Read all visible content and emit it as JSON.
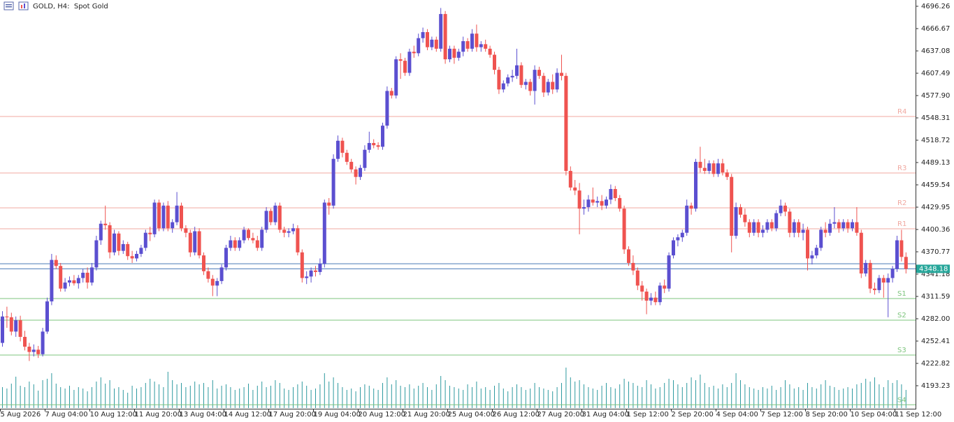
{
  "chart_data": {
    "type": "candlestick",
    "title": "GOLD, H4:  Spot Gold",
    "bull_color": "#5b4fd0",
    "bear_color": "#ef5350",
    "volume_color": "#2e9aa0",
    "ylim": [
      4163.62,
      4704.58
    ],
    "yticks": [
      4696.26,
      4666.67,
      4637.08,
      4607.49,
      {
        "value": 4577.9,
        "label": "4577.90"
      },
      4548.31,
      4518.72,
      4489.13,
      4459.54,
      4429.95,
      4400.36,
      4370.77,
      4341.18,
      4311.59,
      {
        "value": 4282,
        "label": "4282.00"
      },
      4252.41,
      4222.82,
      4193.23
    ],
    "xticks": [
      {
        "value": 0,
        "label": "5 Aug 2026"
      },
      {
        "value": 10,
        "label": "7 Aug 04:00"
      },
      {
        "value": 20,
        "label": "10 Aug 12:00"
      },
      {
        "value": 30,
        "label": "11 Aug 20:00"
      },
      {
        "value": 40,
        "label": "13 Aug 04:00"
      },
      {
        "value": 50,
        "label": "14 Aug 12:00"
      },
      {
        "value": 60,
        "label": "17 Aug 20:00"
      },
      {
        "value": 70,
        "label": "19 Aug 04:00"
      },
      {
        "value": 80,
        "label": "20 Aug 12:00"
      },
      {
        "value": 90,
        "label": "21 Aug 20:00"
      },
      {
        "value": 100,
        "label": "25 Aug 04:00"
      },
      {
        "value": 110,
        "label": "26 Aug 12:00"
      },
      {
        "value": 120,
        "label": "27 Aug 20:00"
      },
      {
        "value": 130,
        "label": "31 Aug 04:00"
      },
      {
        "value": 140,
        "label": "1 Sep 12:00"
      },
      {
        "value": 150,
        "label": "2 Sep 20:00"
      },
      {
        "value": 160,
        "label": "4 Sep 04:00"
      },
      {
        "value": 170,
        "label": "7 Sep 12:00"
      },
      {
        "value": 180,
        "label": "8 Sep 20:00"
      },
      {
        "value": 190,
        "label": "10 Sep 04:00"
      },
      {
        "value": 200,
        "label": "11 Sep 12:00"
      }
    ],
    "bid": {
      "value": 4348.18,
      "label": "4348.18",
      "color": "#26a69a"
    },
    "ask": {
      "value": 4354.9,
      "color": "#4a7ab8"
    },
    "levels": [
      {
        "label": "R4",
        "value": 4550.2,
        "color": "#f0a8a0"
      },
      {
        "label": "R3",
        "value": 4475.3,
        "color": "#f0a8a0"
      },
      {
        "label": "R2",
        "value": 4429.0,
        "color": "#f0a8a0"
      },
      {
        "label": "R1",
        "value": 4401.3,
        "color": "#f0a8a0"
      },
      {
        "label": "S1",
        "value": 4308.8,
        "color": "#7cc47c"
      },
      {
        "label": "S2",
        "value": 4280.1,
        "color": "#7cc47c"
      },
      {
        "label": "S3",
        "value": 4233.9,
        "color": "#7cc47c"
      },
      {
        "label": "S4",
        "value": 4168.0,
        "color": "#7cc47c"
      }
    ],
    "ohlc": [
      [
        4250,
        4292,
        4245,
        4285
      ],
      [
        4285,
        4298,
        4270,
        4284
      ],
      [
        4284,
        4290,
        4260,
        4265
      ],
      [
        4265,
        4285,
        4258,
        4280
      ],
      [
        4280,
        4286,
        4252,
        4258
      ],
      [
        4258,
        4266,
        4240,
        4245
      ],
      [
        4245,
        4250,
        4226,
        4238
      ],
      [
        4238,
        4248,
        4232,
        4241
      ],
      [
        4241,
        4246,
        4230,
        4235
      ],
      [
        4235,
        4270,
        4232,
        4265
      ],
      [
        4265,
        4310,
        4262,
        4305
      ],
      [
        4305,
        4368,
        4300,
        4360
      ],
      [
        4360,
        4366,
        4348,
        4352
      ],
      [
        4352,
        4356,
        4318,
        4322
      ],
      [
        4322,
        4336,
        4318,
        4330
      ],
      [
        4330,
        4338,
        4325,
        4333
      ],
      [
        4333,
        4340,
        4326,
        4329
      ],
      [
        4329,
        4340,
        4322,
        4336
      ],
      [
        4336,
        4348,
        4330,
        4343
      ],
      [
        4343,
        4350,
        4322,
        4330
      ],
      [
        4330,
        4356,
        4326,
        4350
      ],
      [
        4350,
        4392,
        4346,
        4386
      ],
      [
        4386,
        4412,
        4380,
        4408
      ],
      [
        4408,
        4432,
        4400,
        4406
      ],
      [
        4406,
        4410,
        4362,
        4370
      ],
      [
        4370,
        4400,
        4366,
        4395
      ],
      [
        4395,
        4398,
        4366,
        4372
      ],
      [
        4372,
        4386,
        4368,
        4381
      ],
      [
        4381,
        4384,
        4360,
        4365
      ],
      [
        4365,
        4372,
        4356,
        4362
      ],
      [
        4362,
        4372,
        4358,
        4368
      ],
      [
        4368,
        4380,
        4364,
        4376
      ],
      [
        4376,
        4400,
        4372,
        4396
      ],
      [
        4396,
        4404,
        4385,
        4394
      ],
      [
        4394,
        4440,
        4390,
        4436
      ],
      [
        4436,
        4440,
        4398,
        4402
      ],
      [
        4402,
        4436,
        4398,
        4432
      ],
      [
        4432,
        4438,
        4398,
        4402
      ],
      [
        4402,
        4414,
        4396,
        4410
      ],
      [
        4410,
        4450,
        4406,
        4432
      ],
      [
        4432,
        4436,
        4398,
        4402
      ],
      [
        4402,
        4406,
        4390,
        4396
      ],
      [
        4396,
        4400,
        4364,
        4370
      ],
      [
        4370,
        4404,
        4366,
        4398
      ],
      [
        4398,
        4402,
        4362,
        4366
      ],
      [
        4366,
        4370,
        4340,
        4345
      ],
      [
        4345,
        4350,
        4330,
        4335
      ],
      [
        4335,
        4340,
        4312,
        4326
      ],
      [
        4326,
        4336,
        4312,
        4332
      ],
      [
        4332,
        4354,
        4328,
        4350
      ],
      [
        4350,
        4380,
        4346,
        4376
      ],
      [
        4376,
        4392,
        4372,
        4386
      ],
      [
        4386,
        4390,
        4372,
        4376
      ],
      [
        4376,
        4390,
        4372,
        4386
      ],
      [
        4386,
        4404,
        4382,
        4400
      ],
      [
        4400,
        4402,
        4386,
        4389
      ],
      [
        4389,
        4396,
        4382,
        4386
      ],
      [
        4386,
        4392,
        4372,
        4376
      ],
      [
        4376,
        4404,
        4372,
        4400
      ],
      [
        4400,
        4430,
        4396,
        4425
      ],
      [
        4425,
        4428,
        4406,
        4410
      ],
      [
        4410,
        4436,
        4406,
        4432
      ],
      [
        4432,
        4436,
        4396,
        4400
      ],
      [
        4400,
        4404,
        4390,
        4396
      ],
      [
        4396,
        4402,
        4390,
        4398
      ],
      [
        4398,
        4408,
        4394,
        4402
      ],
      [
        4402,
        4406,
        4366,
        4370
      ],
      [
        4370,
        4374,
        4330,
        4336
      ],
      [
        4336,
        4345,
        4328,
        4338
      ],
      [
        4338,
        4350,
        4330,
        4346
      ],
      [
        4346,
        4352,
        4338,
        4344
      ],
      [
        4344,
        4362,
        4340,
        4355
      ],
      [
        4355,
        4440,
        4350,
        4436
      ],
      [
        4436,
        4442,
        4420,
        4432
      ],
      [
        4432,
        4500,
        4428,
        4494
      ],
      [
        4494,
        4525,
        4490,
        4518
      ],
      [
        4518,
        4522,
        4496,
        4502
      ],
      [
        4502,
        4506,
        4486,
        4490
      ],
      [
        4490,
        4494,
        4476,
        4480
      ],
      [
        4480,
        4484,
        4460,
        4470
      ],
      [
        4470,
        4486,
        4466,
        4482
      ],
      [
        4482,
        4512,
        4478,
        4506
      ],
      [
        4506,
        4530,
        4502,
        4515
      ],
      [
        4515,
        4520,
        4508,
        4512
      ],
      [
        4512,
        4516,
        4506,
        4510
      ],
      [
        4510,
        4542,
        4506,
        4538
      ],
      [
        4538,
        4590,
        4534,
        4584
      ],
      [
        4584,
        4588,
        4574,
        4578
      ],
      [
        4578,
        4630,
        4574,
        4626
      ],
      [
        4626,
        4634,
        4600,
        4624
      ],
      [
        4624,
        4628,
        4604,
        4608
      ],
      [
        4608,
        4640,
        4604,
        4636
      ],
      [
        4636,
        4644,
        4628,
        4634
      ],
      [
        4634,
        4660,
        4630,
        4654
      ],
      [
        4654,
        4668,
        4648,
        4662
      ],
      [
        4662,
        4666,
        4638,
        4642
      ],
      [
        4642,
        4656,
        4638,
        4652
      ],
      [
        4652,
        4656,
        4636,
        4640
      ],
      [
        4640,
        4694,
        4636,
        4686
      ],
      [
        4686,
        4690,
        4620,
        4626
      ],
      [
        4626,
        4644,
        4622,
        4640
      ],
      [
        4640,
        4644,
        4620,
        4628
      ],
      [
        4628,
        4640,
        4624,
        4636
      ],
      [
        4636,
        4656,
        4630,
        4650
      ],
      [
        4650,
        4654,
        4636,
        4640
      ],
      [
        4640,
        4666,
        4636,
        4660
      ],
      [
        4660,
        4672,
        4636,
        4642
      ],
      [
        4642,
        4650,
        4636,
        4646
      ],
      [
        4646,
        4652,
        4636,
        4640
      ],
      [
        4640,
        4644,
        4628,
        4632
      ],
      [
        4632,
        4636,
        4606,
        4612
      ],
      [
        4612,
        4616,
        4580,
        4586
      ],
      [
        4586,
        4598,
        4582,
        4594
      ],
      [
        4594,
        4606,
        4590,
        4602
      ],
      [
        4602,
        4612,
        4596,
        4604
      ],
      [
        4604,
        4640,
        4600,
        4618
      ],
      [
        4618,
        4622,
        4588,
        4592
      ],
      [
        4592,
        4600,
        4586,
        4596
      ],
      [
        4596,
        4600,
        4578,
        4584
      ],
      [
        4584,
        4618,
        4566,
        4612
      ],
      [
        4612,
        4616,
        4600,
        4604
      ],
      [
        4604,
        4608,
        4576,
        4582
      ],
      [
        4582,
        4600,
        4578,
        4596
      ],
      [
        4596,
        4606,
        4580,
        4586
      ],
      [
        4586,
        4614,
        4582,
        4608
      ],
      [
        4608,
        4632,
        4598,
        4604
      ],
      [
        4604,
        4608,
        4472,
        4478
      ],
      [
        4478,
        4484,
        4452,
        4456
      ],
      [
        4456,
        4466,
        4446,
        4452
      ],
      [
        4452,
        4462,
        4394,
        4428
      ],
      [
        4428,
        4440,
        4420,
        4430
      ],
      [
        4430,
        4446,
        4424,
        4440
      ],
      [
        4440,
        4456,
        4432,
        4436
      ],
      [
        4436,
        4444,
        4430,
        4438
      ],
      [
        4438,
        4446,
        4426,
        4432
      ],
      [
        4432,
        4444,
        4428,
        4440
      ],
      [
        4440,
        4460,
        4434,
        4454
      ],
      [
        4454,
        4458,
        4438,
        4442
      ],
      [
        4442,
        4446,
        4424,
        4428
      ],
      [
        4428,
        4432,
        4368,
        4374
      ],
      [
        4374,
        4378,
        4352,
        4356
      ],
      [
        4356,
        4366,
        4340,
        4346
      ],
      [
        4346,
        4350,
        4320,
        4326
      ],
      [
        4326,
        4332,
        4306,
        4318
      ],
      [
        4318,
        4322,
        4288,
        4306
      ],
      [
        4306,
        4316,
        4300,
        4310
      ],
      [
        4310,
        4318,
        4300,
        4304
      ],
      [
        4304,
        4330,
        4300,
        4326
      ],
      [
        4326,
        4334,
        4316,
        4322
      ],
      [
        4322,
        4370,
        4318,
        4366
      ],
      [
        4366,
        4390,
        4362,
        4386
      ],
      [
        4386,
        4394,
        4378,
        4390
      ],
      [
        4390,
        4400,
        4384,
        4396
      ],
      [
        4396,
        4440,
        4392,
        4432
      ],
      [
        4432,
        4436,
        4420,
        4428
      ],
      [
        4428,
        4494,
        4424,
        4490
      ],
      [
        4490,
        4510,
        4476,
        4482
      ],
      [
        4482,
        4494,
        4474,
        4478
      ],
      [
        4478,
        4492,
        4474,
        4488
      ],
      [
        4488,
        4492,
        4470,
        4474
      ],
      [
        4474,
        4494,
        4470,
        4488
      ],
      [
        4488,
        4494,
        4472,
        4476
      ],
      [
        4476,
        4480,
        4466,
        4470
      ],
      [
        4470,
        4474,
        4370,
        4392
      ],
      [
        4392,
        4436,
        4388,
        4430
      ],
      [
        4430,
        4434,
        4416,
        4420
      ],
      [
        4420,
        4428,
        4404,
        4410
      ],
      [
        4410,
        4414,
        4390,
        4396
      ],
      [
        4396,
        4414,
        4392,
        4410
      ],
      [
        4410,
        4414,
        4390,
        4396
      ],
      [
        4396,
        4406,
        4390,
        4400
      ],
      [
        4400,
        4414,
        4396,
        4410
      ],
      [
        4410,
        4414,
        4398,
        4402
      ],
      [
        4402,
        4426,
        4398,
        4422
      ],
      [
        4422,
        4440,
        4418,
        4432
      ],
      [
        4432,
        4436,
        4418,
        4424
      ],
      [
        4424,
        4428,
        4390,
        4396
      ],
      [
        4396,
        4414,
        4390,
        4410
      ],
      [
        4410,
        4414,
        4390,
        4396
      ],
      [
        4396,
        4408,
        4386,
        4400
      ],
      [
        4400,
        4404,
        4346,
        4362
      ],
      [
        4362,
        4372,
        4354,
        4366
      ],
      [
        4366,
        4380,
        4362,
        4376
      ],
      [
        4376,
        4404,
        4372,
        4400
      ],
      [
        4400,
        4410,
        4390,
        4396
      ],
      [
        4396,
        4414,
        4392,
        4408
      ],
      [
        4408,
        4430,
        4402,
        4410
      ],
      [
        4410,
        4414,
        4396,
        4402
      ],
      [
        4402,
        4414,
        4398,
        4410
      ],
      [
        4410,
        4414,
        4396,
        4402
      ],
      [
        4402,
        4414,
        4398,
        4410
      ],
      [
        4410,
        4430,
        4392,
        4396
      ],
      [
        4396,
        4400,
        4336,
        4342
      ],
      [
        4342,
        4360,
        4338,
        4356
      ],
      [
        4356,
        4360,
        4316,
        4322
      ],
      [
        4322,
        4330,
        4314,
        4320
      ],
      [
        4320,
        4340,
        4316,
        4336
      ],
      [
        4336,
        4340,
        4310,
        4330
      ],
      [
        4330,
        4342,
        4284,
        4336
      ],
      [
        4336,
        4352,
        4330,
        4348
      ],
      [
        4348,
        4392,
        4344,
        4386
      ],
      [
        4386,
        4400,
        4358,
        4364
      ],
      [
        4364,
        4370,
        4342,
        4348
      ]
    ],
    "volume": [
      30,
      28,
      35,
      45,
      32,
      30,
      38,
      34,
      25,
      40,
      42,
      50,
      35,
      30,
      28,
      32,
      26,
      30,
      28,
      24,
      30,
      38,
      44,
      35,
      40,
      28,
      30,
      26,
      22,
      32,
      28,
      30,
      36,
      42,
      38,
      34,
      30,
      52,
      40,
      34,
      36,
      30,
      32,
      38,
      34,
      36,
      30,
      40,
      28,
      32,
      34,
      30,
      26,
      28,
      30,
      35,
      26,
      32,
      38,
      30,
      32,
      40,
      36,
      28,
      26,
      30,
      34,
      38,
      32,
      26,
      28,
      34,
      50,
      38,
      44,
      36,
      30,
      26,
      28,
      24,
      30,
      34,
      32,
      28,
      26,
      36,
      44,
      34,
      40,
      32,
      30,
      34,
      28,
      32,
      36,
      30,
      26,
      34,
      46,
      40,
      32,
      30,
      28,
      26,
      34,
      30,
      38,
      28,
      30,
      26,
      32,
      36,
      28,
      24,
      30,
      34,
      30,
      26,
      28,
      36,
      30,
      28,
      26,
      24,
      30,
      36,
      58,
      44,
      38,
      40,
      34,
      30,
      28,
      26,
      32,
      36,
      30,
      28,
      34,
      42,
      38,
      36,
      32,
      30,
      40,
      34,
      28,
      30,
      36,
      42,
      40,
      34,
      30,
      36,
      44,
      40,
      48,
      36,
      30,
      32,
      28,
      34,
      30,
      36,
      50,
      40,
      34,
      30,
      28,
      26,
      30,
      28,
      32,
      26,
      30,
      40,
      34,
      28,
      30,
      26,
      36,
      30,
      28,
      34,
      40,
      32,
      30,
      26,
      28,
      30,
      28,
      34,
      36,
      42,
      38,
      44,
      34,
      30,
      40,
      36,
      40,
      34,
      26
    ]
  }
}
